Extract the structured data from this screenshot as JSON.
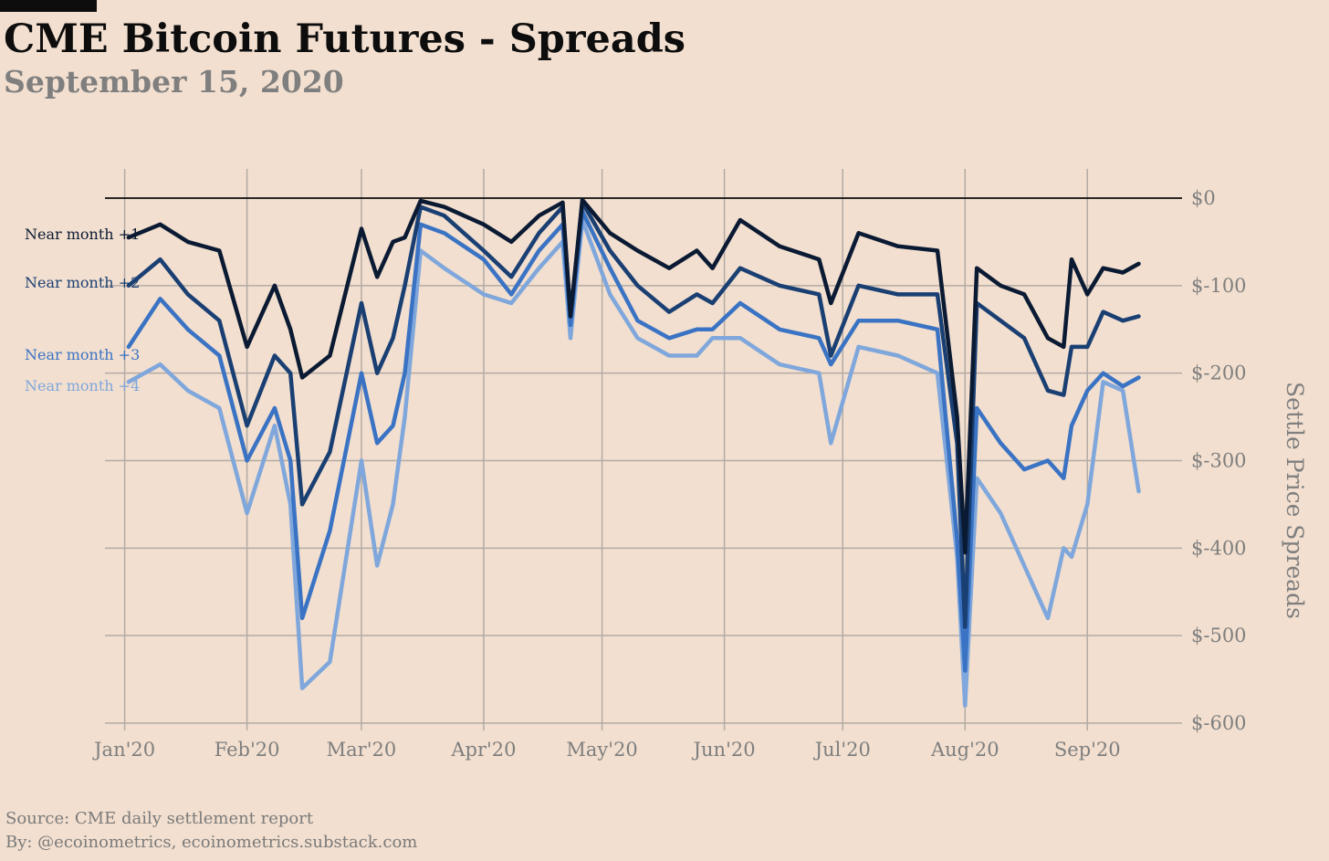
{
  "header": {
    "title": "CME Bitcoin Futures - Spreads",
    "subtitle": "September 15, 2020"
  },
  "footer": {
    "source": "Source: CME daily settlement report",
    "byline": "By: @ecoinometrics, ecoinometrics.substack.com"
  },
  "chart_data": {
    "type": "line",
    "title": "CME Bitcoin Futures - Spreads",
    "subtitle": "September 15, 2020",
    "xlabel": "",
    "ylabel": "Settle Price Spreads",
    "y_axis_position": "right",
    "legend_placement": "left, inline labels",
    "grid": true,
    "ylim": [
      -600,
      0
    ],
    "xlim": [
      "2019-12-27",
      "2020-09-25"
    ],
    "y_ticks": [
      0,
      -100,
      -200,
      -300,
      -400,
      -500,
      -600
    ],
    "y_tick_labels": [
      "$0",
      "$-100",
      "$-200",
      "$-300",
      "$-400",
      "$-500",
      "$-600"
    ],
    "x_ticks": [
      "2020-01-01",
      "2020-02-01",
      "2020-03-01",
      "2020-04-01",
      "2020-05-01",
      "2020-06-01",
      "2020-07-01",
      "2020-08-01",
      "2020-09-01"
    ],
    "x_tick_labels": [
      "Jan'20",
      "Feb'20",
      "Mar'20",
      "Apr'20",
      "May'20",
      "Jun'20",
      "Jul'20",
      "Aug'20",
      "Sep'20"
    ],
    "x": [
      "2020-01-02",
      "2020-01-10",
      "2020-01-17",
      "2020-01-25",
      "2020-02-01",
      "2020-02-08",
      "2020-02-12",
      "2020-02-15",
      "2020-02-22",
      "2020-03-01",
      "2020-03-05",
      "2020-03-09",
      "2020-03-12",
      "2020-03-16",
      "2020-03-22",
      "2020-04-01",
      "2020-04-08",
      "2020-04-15",
      "2020-04-21",
      "2020-04-23",
      "2020-04-26",
      "2020-05-03",
      "2020-05-10",
      "2020-05-18",
      "2020-05-25",
      "2020-05-29",
      "2020-06-05",
      "2020-06-15",
      "2020-06-25",
      "2020-06-28",
      "2020-07-05",
      "2020-07-15",
      "2020-07-25",
      "2020-07-30",
      "2020-08-01",
      "2020-08-04",
      "2020-08-10",
      "2020-08-16",
      "2020-08-22",
      "2020-08-26",
      "2020-08-28",
      "2020-09-01",
      "2020-09-05",
      "2020-09-10",
      "2020-09-14"
    ],
    "series": [
      {
        "name": "Near month +1",
        "color": "#0b1a33",
        "values": [
          -45,
          -30,
          -50,
          -60,
          -170,
          -100,
          -150,
          -205,
          -180,
          -35,
          -90,
          -50,
          -45,
          -3,
          -10,
          -30,
          -50,
          -20,
          -5,
          -135,
          -2,
          -40,
          -60,
          -80,
          -60,
          -80,
          -25,
          -55,
          -70,
          -120,
          -40,
          -55,
          -60,
          -250,
          -405,
          -80,
          -100,
          -110,
          -160,
          -170,
          -70,
          -110,
          -80,
          -85,
          -75
        ]
      },
      {
        "name": "Near month +2",
        "color": "#1a3f73",
        "values": [
          -100,
          -70,
          -110,
          -140,
          -260,
          -180,
          -200,
          -350,
          -290,
          -120,
          -200,
          -160,
          -100,
          -10,
          -20,
          -60,
          -90,
          -40,
          -10,
          -135,
          -5,
          -60,
          -100,
          -130,
          -110,
          -120,
          -80,
          -100,
          -110,
          -180,
          -100,
          -110,
          -110,
          -280,
          -490,
          -120,
          -140,
          -160,
          -220,
          -225,
          -170,
          -170,
          -130,
          -140,
          -135
        ]
      },
      {
        "name": "Near month +3",
        "color": "#3a73c4",
        "values": [
          -170,
          -115,
          -150,
          -180,
          -300,
          -240,
          -300,
          -480,
          -380,
          -200,
          -280,
          -260,
          -200,
          -30,
          -40,
          -70,
          -110,
          -60,
          -30,
          -145,
          -15,
          -80,
          -140,
          -160,
          -150,
          -150,
          -120,
          -150,
          -160,
          -190,
          -140,
          -140,
          -150,
          -390,
          -540,
          -240,
          -280,
          -310,
          -300,
          -320,
          -260,
          -220,
          -200,
          -215,
          -205
        ]
      },
      {
        "name": "Near month +4",
        "color": "#7fa7dc",
        "values": [
          -210,
          -190,
          -220,
          -240,
          -360,
          -260,
          -350,
          -560,
          -530,
          -300,
          -420,
          -350,
          -250,
          -60,
          -80,
          -110,
          -120,
          -80,
          -50,
          -160,
          -25,
          -110,
          -160,
          -180,
          -180,
          -160,
          -160,
          -190,
          -200,
          -280,
          -170,
          -180,
          -200,
          -410,
          -580,
          -320,
          -360,
          -420,
          -480,
          -400,
          -410,
          -350,
          -210,
          -220,
          -335
        ]
      }
    ]
  }
}
